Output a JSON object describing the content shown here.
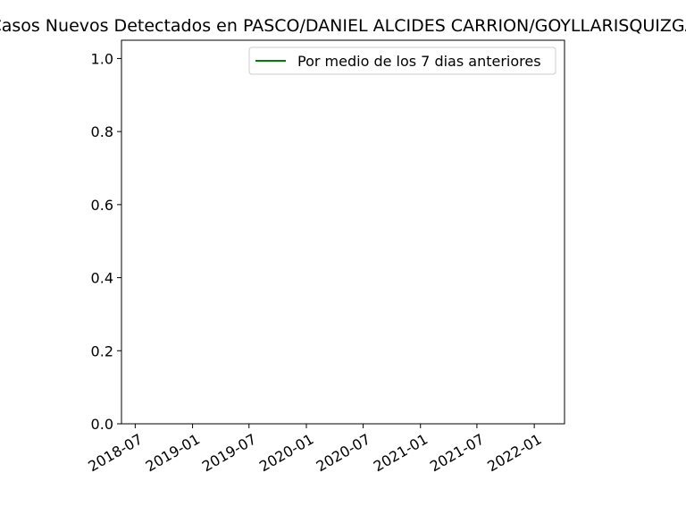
{
  "chart_data": {
    "type": "line",
    "title": "Casos Nuevos Detectados en PASCO/DANIEL ALCIDES CARRION/GOYLLARISQUIZGA",
    "xlabel": "",
    "ylabel": "",
    "ylim": [
      0.0,
      1.05
    ],
    "xlim": [
      "2018-05-18",
      "2022-04-08"
    ],
    "x_ticks": [
      "2018-07",
      "2019-01",
      "2019-07",
      "2020-01",
      "2020-07",
      "2021-01",
      "2021-07",
      "2022-01"
    ],
    "y_ticks": [
      "0.0",
      "0.2",
      "0.4",
      "0.6",
      "0.8",
      "1.0"
    ],
    "grid": false,
    "legend_position": "upper right",
    "series": [
      {
        "name": "Por medio de los 7 dias anteriores",
        "color": "#008000",
        "x": [],
        "y": []
      }
    ]
  }
}
